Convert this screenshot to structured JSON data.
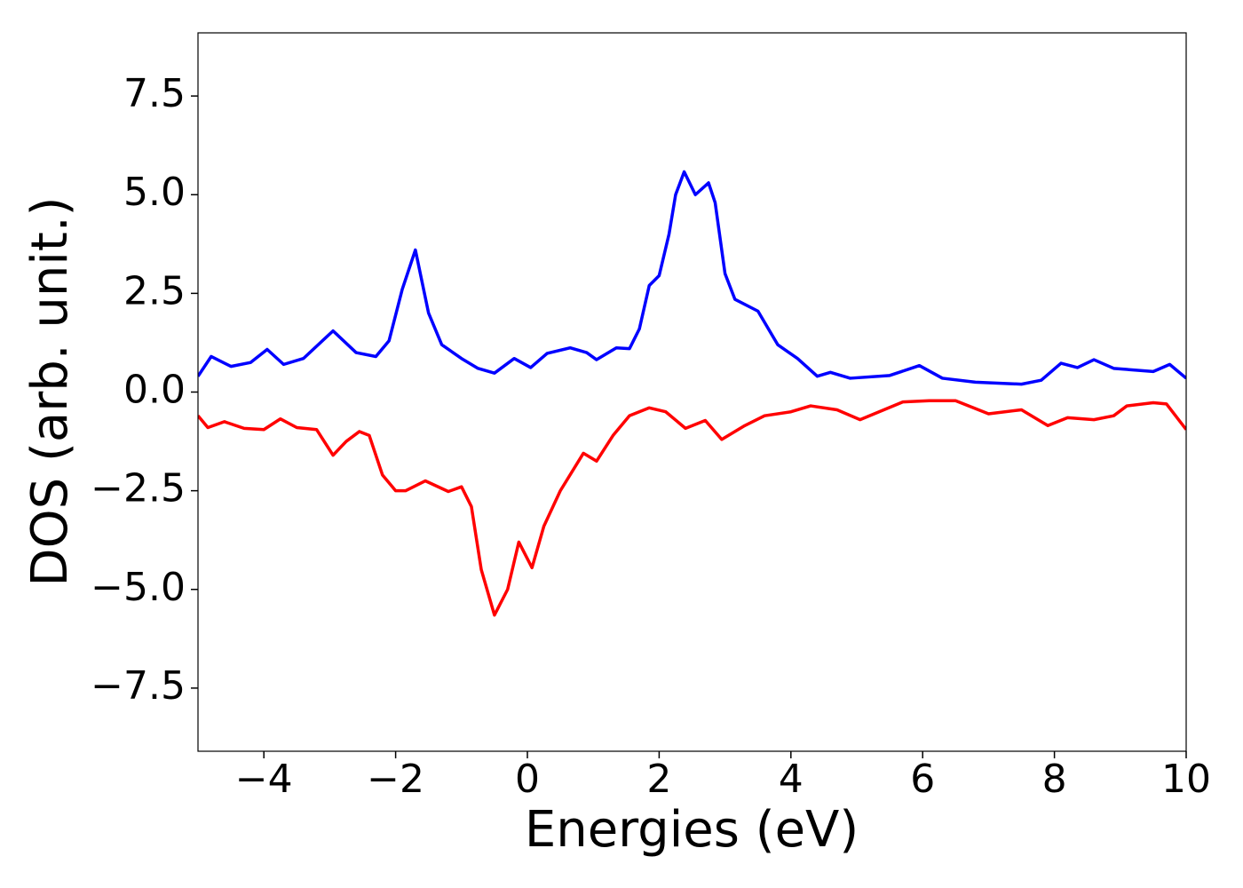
{
  "chart_data": {
    "type": "line",
    "x_label": "Energies (eV)",
    "y_label": "DOS (arb. unit.)",
    "xlim": [
      -5,
      10
    ],
    "ylim": [
      -9.1,
      9.1
    ],
    "xticks": [
      {
        "value": -4,
        "label": "−4"
      },
      {
        "value": -2,
        "label": "−2"
      },
      0,
      2,
      4,
      6,
      8,
      10
    ],
    "yticks": [
      {
        "value": -7.5,
        "label": "−7.5"
      },
      {
        "value": -5,
        "label": "−5.0"
      },
      {
        "value": -2.5,
        "label": "−2.5"
      },
      {
        "value": 0,
        "label": "0.0"
      },
      2.5,
      {
        "value": 5,
        "label": "5.0"
      },
      7.5
    ],
    "grid": false,
    "series": [
      {
        "color": "#0000ff",
        "x": [
          -5,
          -4.8,
          -4.5,
          -4.2,
          -3.95,
          -3.7,
          -3.4,
          -2.95,
          -2.6,
          -2.3,
          -2.1,
          -1.9,
          -1.7,
          -1.5,
          -1.3,
          -1.0,
          -0.75,
          -0.5,
          -0.2,
          0.05,
          0.3,
          0.65,
          0.9,
          1.05,
          1.35,
          1.55,
          1.7,
          1.85,
          2.0,
          2.15,
          2.25,
          2.38,
          2.55,
          2.75,
          2.85,
          3.0,
          3.15,
          3.5,
          3.8,
          4.1,
          4.4,
          4.6,
          4.9,
          5.5,
          5.95,
          6.3,
          6.8,
          7.5,
          7.8,
          8.1,
          8.35,
          8.6,
          8.9,
          9.5,
          9.75,
          10
        ],
        "values": [
          0.4,
          0.9,
          0.65,
          0.75,
          1.08,
          0.7,
          0.85,
          1.55,
          1.0,
          0.9,
          1.3,
          2.6,
          3.6,
          2.0,
          1.2,
          0.85,
          0.6,
          0.48,
          0.85,
          0.62,
          0.98,
          1.12,
          1.0,
          0.82,
          1.12,
          1.1,
          1.6,
          2.7,
          2.95,
          4.0,
          5.0,
          5.58,
          5.0,
          5.3,
          4.8,
          3.0,
          2.35,
          2.05,
          1.2,
          0.85,
          0.4,
          0.5,
          0.35,
          0.42,
          0.67,
          0.35,
          0.25,
          0.2,
          0.3,
          0.73,
          0.62,
          0.82,
          0.6,
          0.52,
          0.7,
          0.35
        ]
      },
      {
        "color": "#ff0000",
        "x": [
          -5,
          -4.85,
          -4.6,
          -4.3,
          -4.0,
          -3.75,
          -3.5,
          -3.2,
          -2.95,
          -2.75,
          -2.55,
          -2.4,
          -2.2,
          -2.0,
          -1.85,
          -1.55,
          -1.2,
          -1.0,
          -0.85,
          -0.7,
          -0.5,
          -0.3,
          -0.13,
          0.07,
          0.25,
          0.5,
          0.85,
          1.05,
          1.3,
          1.55,
          1.85,
          2.1,
          2.4,
          2.7,
          2.95,
          3.3,
          3.6,
          4.0,
          4.3,
          4.7,
          5.05,
          5.7,
          6.1,
          6.5,
          7.0,
          7.5,
          7.9,
          8.2,
          8.6,
          8.9,
          9.1,
          9.5,
          9.7,
          10
        ],
        "values": [
          -0.6,
          -0.9,
          -0.75,
          -0.92,
          -0.95,
          -0.68,
          -0.9,
          -0.95,
          -1.6,
          -1.25,
          -1.0,
          -1.1,
          -2.1,
          -2.5,
          -2.5,
          -2.25,
          -2.52,
          -2.4,
          -2.9,
          -4.5,
          -5.65,
          -5.0,
          -3.8,
          -4.45,
          -3.4,
          -2.5,
          -1.55,
          -1.75,
          -1.1,
          -0.6,
          -0.4,
          -0.5,
          -0.92,
          -0.72,
          -1.2,
          -0.85,
          -0.6,
          -0.5,
          -0.35,
          -0.45,
          -0.7,
          -0.25,
          -0.22,
          -0.22,
          -0.55,
          -0.45,
          -0.85,
          -0.65,
          -0.7,
          -0.6,
          -0.35,
          -0.27,
          -0.3,
          -0.95
        ]
      }
    ]
  }
}
